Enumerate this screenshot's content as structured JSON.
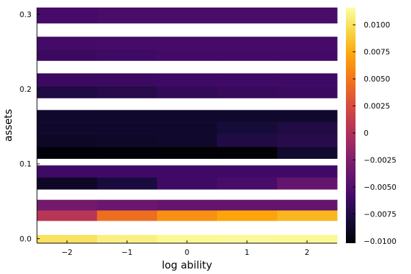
{
  "chart_data": {
    "type": "heatmap",
    "xlabel": "log ability",
    "ylabel": "assets",
    "x": [
      -2,
      -1,
      0,
      1,
      2
    ],
    "x_tick_labels": [
      "−2",
      "−1",
      "0",
      "1",
      "2"
    ],
    "y_tick_values": [
      0.0,
      0.1,
      0.2,
      0.3
    ],
    "y_tick_labels": [
      "0.0",
      "0.1",
      "0.2",
      "0.3"
    ],
    "xlim": [
      -2.5,
      2.5
    ],
    "ylim": [
      -0.006,
      0.309
    ],
    "colorbar": {
      "clim": [
        -0.0102,
        0.0116
      ],
      "tick_values": [
        -0.01,
        -0.0075,
        -0.005,
        -0.0025,
        0,
        0.0025,
        0.005,
        0.0075,
        0.01
      ],
      "tick_labels": [
        "−0.0100",
        "−0.0075",
        "−0.0050",
        "−0.0025",
        "0",
        "0.0025",
        "0.0050",
        "0.0075",
        "0.0100"
      ],
      "colormap": "inferno"
    },
    "rows": [
      {
        "y0": -0.006,
        "y1": 0.005,
        "values": [
          0.01,
          0.0108,
          0.0112,
          0.0113,
          0.0112
        ]
      },
      {
        "y0": 0.024,
        "y1": 0.038,
        "values": [
          0.0005,
          0.0045,
          0.0062,
          0.0072,
          0.008
        ]
      },
      {
        "y0": 0.038,
        "y1": 0.052,
        "values": [
          -0.0032,
          -0.0036,
          -0.004,
          -0.004,
          -0.004
        ]
      },
      {
        "y0": 0.066,
        "y1": 0.082,
        "values": [
          -0.0088,
          -0.0078,
          -0.006,
          -0.0055,
          -0.004
        ]
      },
      {
        "y0": 0.082,
        "y1": 0.098,
        "values": [
          -0.006,
          -0.006,
          -0.006,
          -0.006,
          -0.006
        ]
      },
      {
        "y0": 0.107,
        "y1": 0.123,
        "values": [
          -0.01,
          -0.01,
          -0.0101,
          -0.0101,
          -0.0085
        ]
      },
      {
        "y0": 0.123,
        "y1": 0.14,
        "values": [
          -0.0088,
          -0.0087,
          -0.0085,
          -0.0075,
          -0.0072
        ]
      },
      {
        "y0": 0.14,
        "y1": 0.156,
        "values": [
          -0.0085,
          -0.0085,
          -0.0085,
          -0.008,
          -0.0075
        ]
      },
      {
        "y0": 0.156,
        "y1": 0.172,
        "values": [
          -0.0085,
          -0.0085,
          -0.0085,
          -0.0085,
          -0.0085
        ]
      },
      {
        "y0": 0.188,
        "y1": 0.204,
        "values": [
          -0.0075,
          -0.0072,
          -0.0066,
          -0.0064,
          -0.0062
        ]
      },
      {
        "y0": 0.204,
        "y1": 0.221,
        "values": [
          -0.0062,
          -0.0061,
          -0.006,
          -0.006,
          -0.006
        ]
      },
      {
        "y0": 0.238,
        "y1": 0.254,
        "values": [
          -0.0062,
          -0.006,
          -0.0058,
          -0.0058,
          -0.0058
        ]
      },
      {
        "y0": 0.254,
        "y1": 0.27,
        "values": [
          -0.0058,
          -0.0057,
          -0.0056,
          -0.0056,
          -0.0056
        ]
      },
      {
        "y0": 0.288,
        "y1": 0.309,
        "values": [
          -0.0056,
          -0.0055,
          -0.0055,
          -0.0055,
          -0.0055
        ]
      }
    ]
  }
}
